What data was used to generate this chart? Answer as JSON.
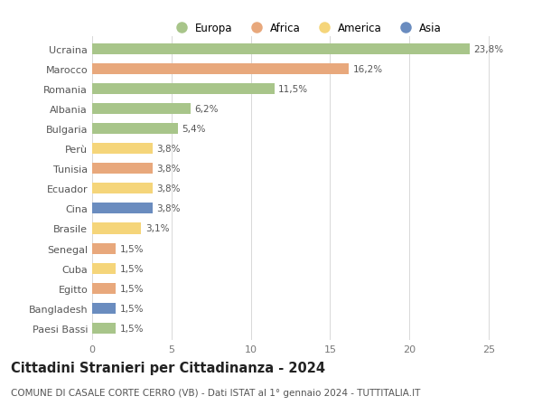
{
  "categories": [
    "Ucraina",
    "Marocco",
    "Romania",
    "Albania",
    "Bulgaria",
    "Perù",
    "Tunisia",
    "Ecuador",
    "Cina",
    "Brasile",
    "Senegal",
    "Cuba",
    "Egitto",
    "Bangladesh",
    "Paesi Bassi"
  ],
  "values": [
    23.8,
    16.2,
    11.5,
    6.2,
    5.4,
    3.8,
    3.8,
    3.8,
    3.8,
    3.1,
    1.5,
    1.5,
    1.5,
    1.5,
    1.5
  ],
  "labels": [
    "23,8%",
    "16,2%",
    "11,5%",
    "6,2%",
    "5,4%",
    "3,8%",
    "3,8%",
    "3,8%",
    "3,8%",
    "3,1%",
    "1,5%",
    "1,5%",
    "1,5%",
    "1,5%",
    "1,5%"
  ],
  "continents": [
    "Europa",
    "Africa",
    "Europa",
    "Europa",
    "Europa",
    "America",
    "Africa",
    "America",
    "Asia",
    "America",
    "Africa",
    "America",
    "Africa",
    "Asia",
    "Europa"
  ],
  "colors": {
    "Europa": "#a8c58a",
    "Africa": "#e8a87c",
    "America": "#f5d57a",
    "Asia": "#6a8cbf"
  },
  "legend_order": [
    "Europa",
    "Africa",
    "America",
    "Asia"
  ],
  "title": "Cittadini Stranieri per Cittadinanza - 2024",
  "subtitle": "COMUNE DI CASALE CORTE CERRO (VB) - Dati ISTAT al 1° gennaio 2024 - TUTTITALIA.IT",
  "xlim": [
    0,
    27
  ],
  "xticks": [
    0,
    5,
    10,
    15,
    20,
    25
  ],
  "background_color": "#ffffff",
  "grid_color": "#d8d8d8",
  "bar_height": 0.55,
  "title_fontsize": 10.5,
  "subtitle_fontsize": 7.5,
  "label_fontsize": 7.5,
  "tick_fontsize": 8,
  "legend_fontsize": 8.5
}
